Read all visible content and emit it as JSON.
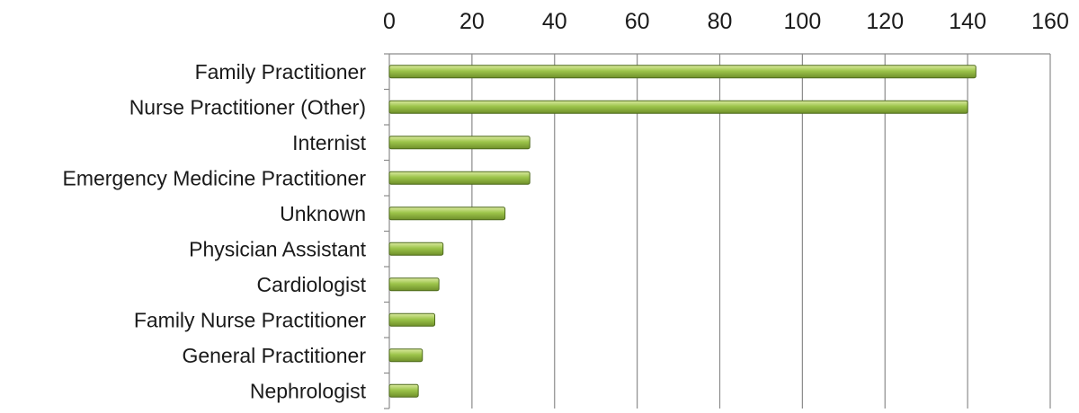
{
  "chart_data": {
    "type": "bar",
    "orientation": "horizontal",
    "title": "",
    "xlabel": "",
    "ylabel": "",
    "categories": [
      "Family Practitioner",
      "Nurse Practitioner (Other)",
      "Internist",
      "Emergency Medicine Practitioner",
      "Unknown",
      "Physician Assistant",
      "Cardiologist",
      "Family Nurse Practitioner",
      "General Practitioner",
      "Nephrologist"
    ],
    "values": [
      142,
      140,
      34,
      34,
      28,
      13,
      12,
      11,
      8,
      7
    ],
    "xlim": [
      0,
      160
    ],
    "x_ticks": [
      0,
      20,
      40,
      60,
      80,
      100,
      120,
      140,
      160
    ],
    "x_axis_position": "top",
    "grid": true,
    "legend": "none",
    "colors": {
      "bar_top": "#dbeaa0",
      "bar_mid": "#9cc44a",
      "bar_bottom": "#6f8f2a",
      "bar_edge": "#4e6a1d",
      "grid": "#8c8c8c"
    }
  }
}
